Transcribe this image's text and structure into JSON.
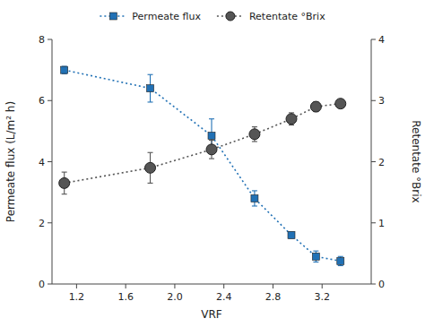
{
  "chart_data": {
    "type": "line",
    "x_label": "VRF",
    "y_label": "Permeate flux (L/m² h)",
    "y2_label": "Retentate °Brix",
    "x": [
      1.1,
      1.8,
      2.3,
      2.65,
      2.95,
      3.15,
      3.35
    ],
    "series": [
      {
        "name": "Permeate flux",
        "color": "#2171b5",
        "marker": "square",
        "line_style": "dotted",
        "values": [
          7.0,
          6.4,
          4.85,
          2.8,
          1.6,
          0.9,
          0.75
        ],
        "errors": [
          0.12,
          0.45,
          0.55,
          0.25,
          0.1,
          0.18,
          0.15
        ]
      },
      {
        "name": "Retentate °Brix",
        "color": "#555555",
        "marker": "circle",
        "line_style": "dotted",
        "axis": "y2",
        "values": [
          1.65,
          1.9,
          2.2,
          2.45,
          2.7,
          2.9,
          2.95
        ],
        "errors": [
          0.18,
          0.25,
          0.15,
          0.12,
          0.1,
          0.08,
          0.06
        ]
      }
    ],
    "xlim": [
      1.0,
      3.6
    ],
    "ylim": [
      0,
      8
    ],
    "y2lim": [
      0,
      4
    ],
    "xticks": [
      1.2,
      1.6,
      {
        "value": 2.0,
        "label": "2.0"
      },
      2.4,
      2.8,
      3.2
    ],
    "yticks": [
      0,
      2,
      4,
      6,
      8
    ],
    "y2ticks": [
      0,
      1,
      2,
      3,
      4
    ],
    "grid": false,
    "legend": "top"
  }
}
